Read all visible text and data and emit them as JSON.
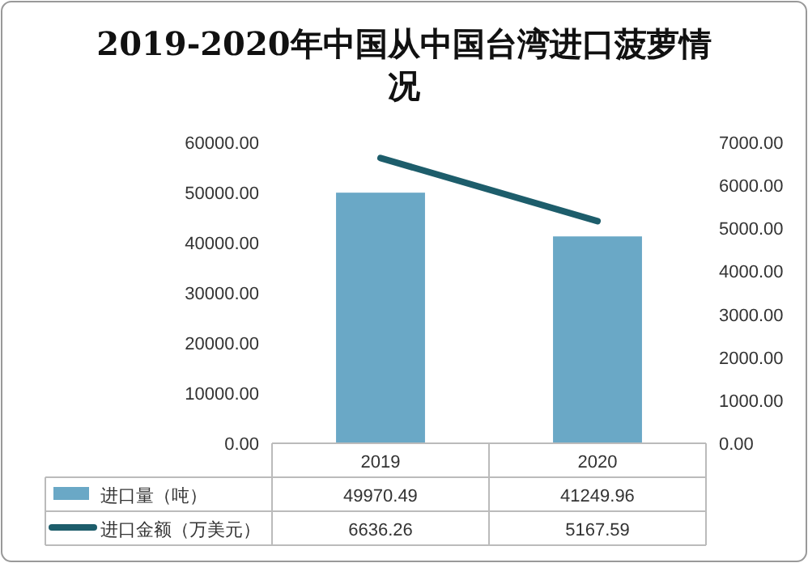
{
  "chart_data": {
    "type": "bar",
    "title": "2019-2020年中国从中国台湾进口菠萝情况",
    "categories": [
      "2019",
      "2020"
    ],
    "series": [
      {
        "name": "进口量（吨）",
        "color": "#6aa8c6",
        "values": [
          49970.49,
          41249.96
        ]
      },
      {
        "name": "进口金额（万美元）",
        "type": "line",
        "axis": "y2",
        "color": "#1d5d6b",
        "values": [
          6636.26,
          5167.59
        ]
      }
    ],
    "ylim": [
      0,
      60000
    ],
    "yticks": [
      {
        "value": 0,
        "label": "0.00"
      },
      {
        "value": 10000,
        "label": "10000.00"
      },
      {
        "value": 20000,
        "label": "20000.00"
      },
      {
        "value": 30000,
        "label": "30000.00"
      },
      {
        "value": 40000,
        "label": "40000.00"
      },
      {
        "value": 50000,
        "label": "50000.00"
      },
      {
        "value": 60000,
        "label": "60000.00"
      }
    ],
    "y2lim": [
      0,
      7000
    ],
    "y2ticks": [
      {
        "value": 0,
        "label": "0.00"
      },
      {
        "value": 1000,
        "label": "1000.00"
      },
      {
        "value": 2000,
        "label": "2000.00"
      },
      {
        "value": 3000,
        "label": "3000.00"
      },
      {
        "value": 4000,
        "label": "4000.00"
      },
      {
        "value": 5000,
        "label": "5000.00"
      },
      {
        "value": 6000,
        "label": "6000.00"
      },
      {
        "value": 7000,
        "label": "7000.00"
      }
    ],
    "data_labels": true,
    "legend": "bottom"
  }
}
